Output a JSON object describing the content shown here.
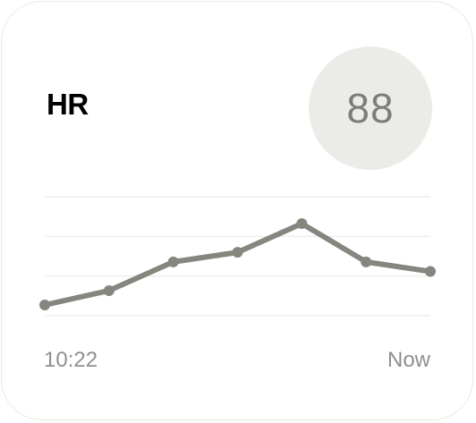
{
  "widget": {
    "title": "HR",
    "current_value": "88"
  },
  "chart_data": {
    "type": "line",
    "x_tick_labels": [
      "10:22",
      "Now"
    ],
    "series": [
      {
        "values": [
          0.0,
          0.15,
          0.45,
          0.55,
          0.85,
          0.45,
          0.35
        ]
      }
    ],
    "ylim": [
      0,
      1
    ],
    "grid": true,
    "colors": {
      "line": "#85877f",
      "grid": "#efefef"
    }
  }
}
